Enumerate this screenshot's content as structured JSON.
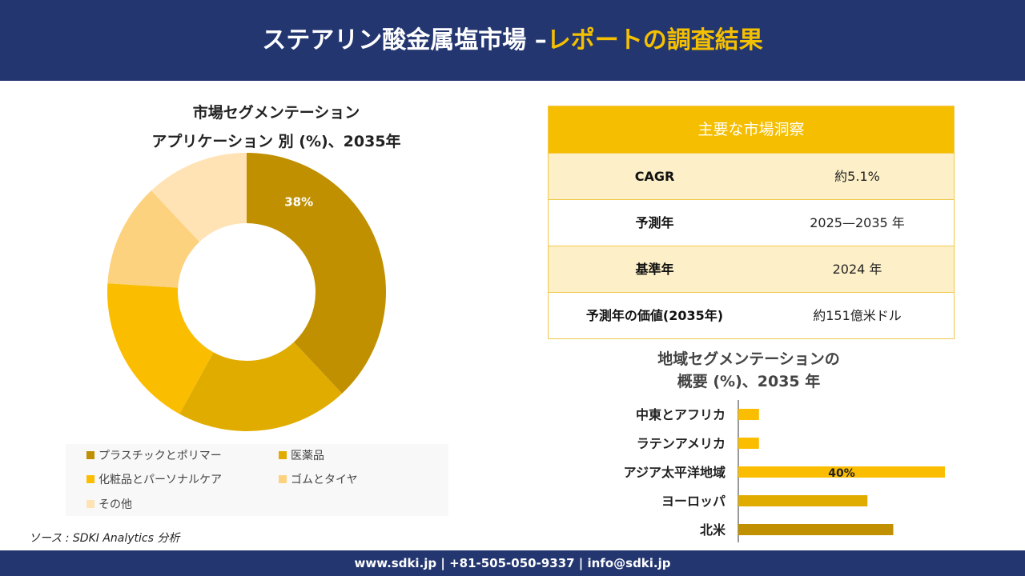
{
  "header": {
    "title_main": "ステアリン酸金属塩市場 –",
    "title_accent": "レポートの調査結果"
  },
  "footer": {
    "text": "www.sdki.jp | +81-505-050-9337 | info@sdki.jp"
  },
  "source": "ソース : SDKI Analytics 分析",
  "colors": {
    "header_bg": "#233670",
    "accent": "#f5c000",
    "table_head": "#f5be00",
    "table_shade": "#fdf0c8"
  },
  "key_insights": {
    "title": "主要な市場洞察",
    "rows": [
      {
        "label": "CAGR",
        "value": "約5.1%"
      },
      {
        "label": "予測年",
        "value": "2025—2035 年"
      },
      {
        "label": "基準年",
        "value": "2024 年"
      },
      {
        "label": "予測年の価値(2035年)",
        "value": "約151億米ドル"
      }
    ]
  },
  "chart_data": [
    {
      "type": "pie",
      "title_line1": "市場セグメンテーション",
      "title_line2": "アプリケーション 別 (%)、2035年",
      "donut": true,
      "categories": [
        "プラスチックとポリマー",
        "医薬品",
        "化粧品とパーソナルケア",
        "ゴムとタイヤ",
        "その他"
      ],
      "values": [
        38,
        20,
        18,
        12,
        12
      ],
      "labels": [
        "38%",
        "",
        "",
        "",
        ""
      ],
      "colors": [
        "#c09000",
        "#e0ac00",
        "#fbbd00",
        "#fdd27e",
        "#ffe3b5"
      ],
      "legend_position": "bottom"
    },
    {
      "type": "bar",
      "orientation": "horizontal",
      "title_line1": "地域セグメンテーションの",
      "title_line2": "概要 (%)、2035 年",
      "categories": [
        "中東とアフリカ",
        "ラテンアメリカ",
        "アジア太平洋地域",
        "ヨーロッパ",
        "北米"
      ],
      "values": [
        4,
        4,
        40,
        25,
        30
      ],
      "labels": [
        "",
        "",
        "40%",
        "",
        ""
      ],
      "colors": [
        "#fbbd00",
        "#fbbd00",
        "#fbbd00",
        "#e0ac00",
        "#c09000"
      ],
      "xlim": [
        0,
        40
      ]
    }
  ]
}
